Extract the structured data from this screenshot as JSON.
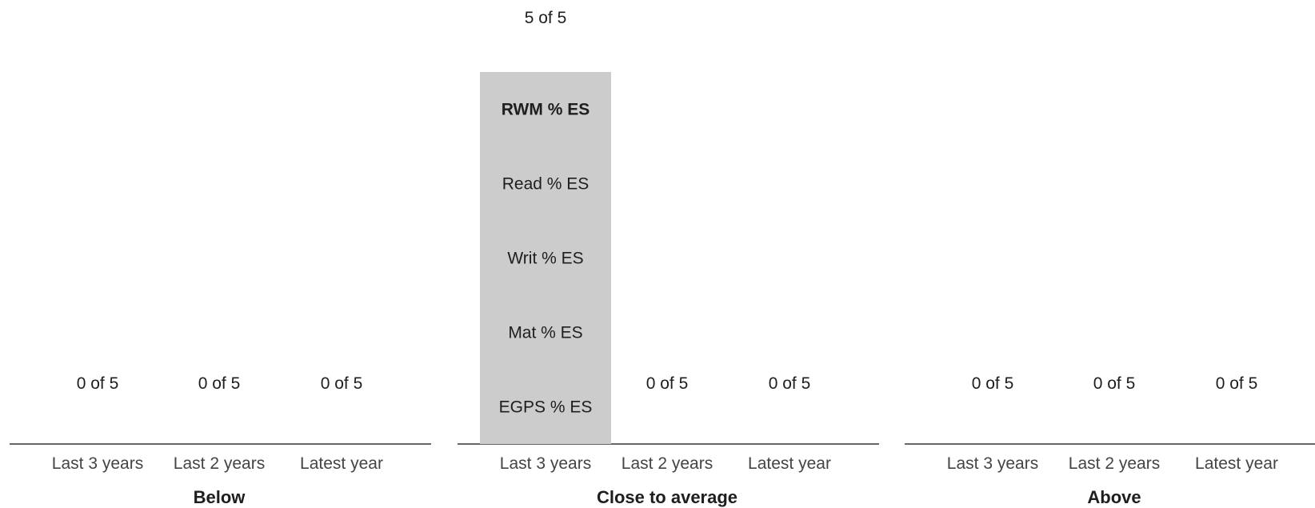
{
  "chart_data": {
    "type": "bar",
    "max_count": 5,
    "count_format": "{n} of {max}",
    "bar_color": "#cccccc",
    "axis_color": "#333333",
    "groups": [
      {
        "name": "Below",
        "columns": [
          {
            "label": "Last 3 years",
            "count": 0,
            "items": []
          },
          {
            "label": "Last 2 years",
            "count": 0,
            "items": []
          },
          {
            "label": "Latest year",
            "count": 0,
            "items": []
          }
        ]
      },
      {
        "name": "Close to average",
        "columns": [
          {
            "label": "Last 3 years",
            "count": 5,
            "items": [
              {
                "label": "RWM % ES",
                "bold": true
              },
              {
                "label": "Read % ES",
                "bold": false
              },
              {
                "label": "Writ % ES",
                "bold": false
              },
              {
                "label": "Mat % ES",
                "bold": false
              },
              {
                "label": "EGPS % ES",
                "bold": false
              }
            ]
          },
          {
            "label": "Last 2 years",
            "count": 0,
            "items": []
          },
          {
            "label": "Latest year",
            "count": 0,
            "items": []
          }
        ]
      },
      {
        "name": "Above",
        "columns": [
          {
            "label": "Last 3 years",
            "count": 0,
            "items": []
          },
          {
            "label": "Last 2 years",
            "count": 0,
            "items": []
          },
          {
            "label": "Latest year",
            "count": 0,
            "items": []
          }
        ]
      }
    ]
  }
}
